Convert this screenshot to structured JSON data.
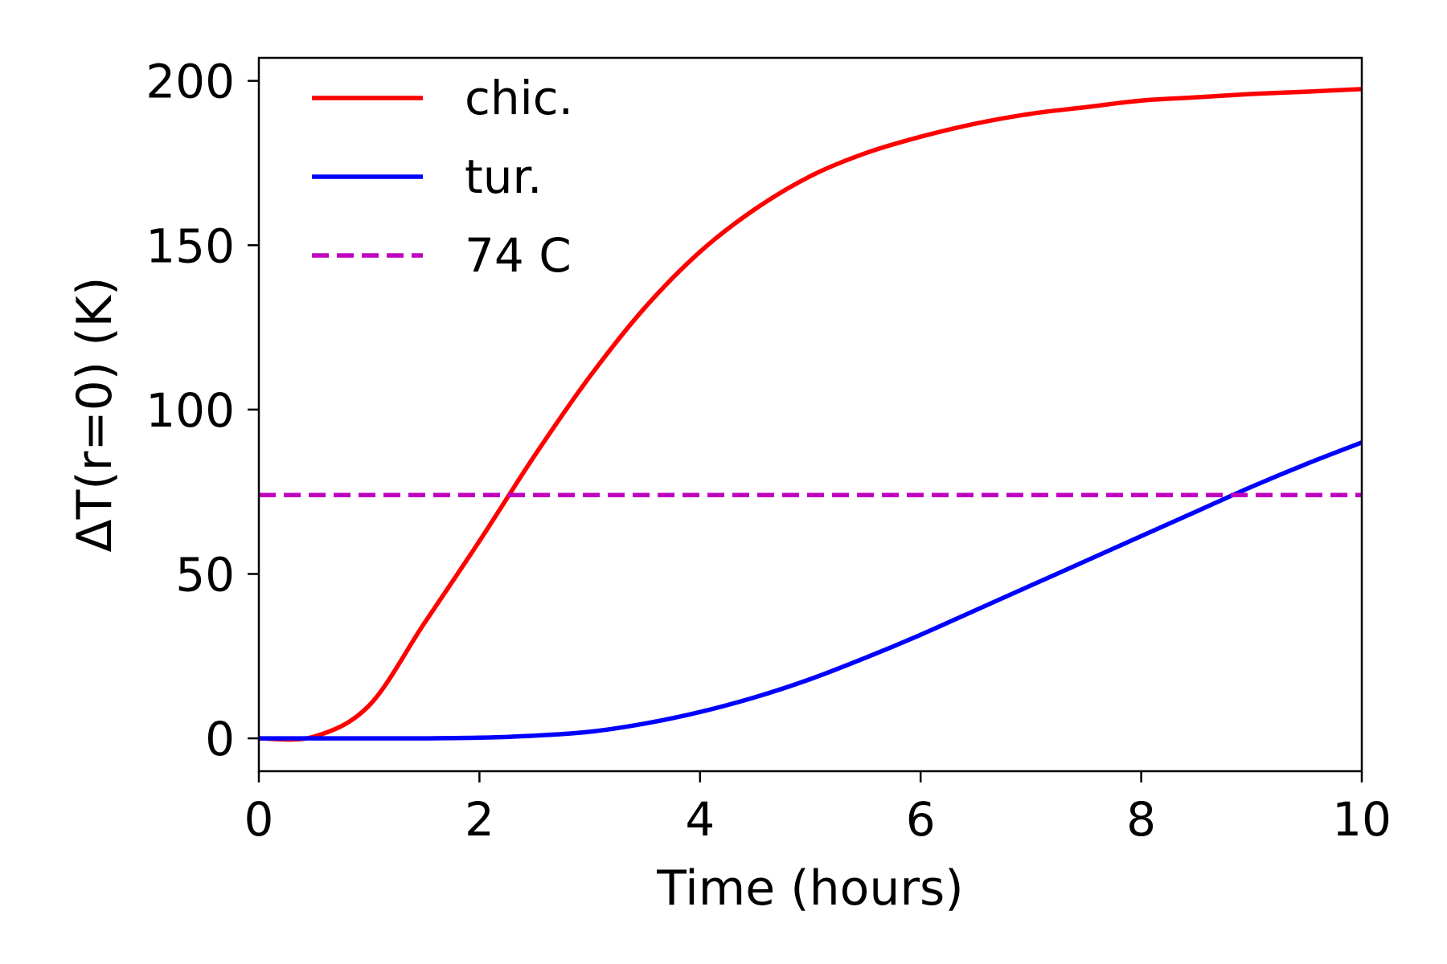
{
  "chart_data": {
    "type": "line",
    "xlabel": "Time (hours)",
    "ylabel": "ΔT(r=0) (K)",
    "xlim": [
      0,
      10
    ],
    "ylim": [
      -10,
      207
    ],
    "xticks": [
      0,
      2,
      4,
      6,
      8,
      10
    ],
    "xtick_labels": [
      "0",
      "2",
      "4",
      "6",
      "8",
      "10"
    ],
    "yticks": [
      0,
      50,
      100,
      150,
      200
    ],
    "ytick_labels": [
      "0",
      "50",
      "100",
      "150",
      "200"
    ],
    "grid": false,
    "legend_position": "top-left",
    "x": [
      0,
      0.5,
      1,
      1.5,
      2,
      2.5,
      3,
      3.5,
      4,
      4.5,
      5,
      5.5,
      6,
      6.5,
      7,
      7.5,
      8,
      8.5,
      9,
      9.5,
      10
    ],
    "series": [
      {
        "name": "chic.",
        "color": "#ff0000",
        "style": "solid",
        "values": [
          0,
          0.5,
          10,
          35,
          60,
          86,
          110,
          131,
          148,
          161,
          171,
          178,
          183,
          187,
          190,
          192,
          194,
          195,
          196,
          196.7,
          197.5
        ]
      },
      {
        "name": "tur.",
        "color": "#0000ff",
        "style": "solid",
        "values": [
          0,
          0,
          0,
          0,
          0.2,
          0.8,
          2,
          4.5,
          8,
          12.5,
          18,
          24.5,
          31.5,
          39,
          46.5,
          54,
          61.5,
          69,
          76.5,
          83.5,
          90
        ]
      },
      {
        "name": "74 C",
        "color": "#bf00bf",
        "style": "dashed",
        "values": [
          74,
          74,
          74,
          74,
          74,
          74,
          74,
          74,
          74,
          74,
          74,
          74,
          74,
          74,
          74,
          74,
          74,
          74,
          74,
          74,
          74
        ]
      }
    ]
  }
}
